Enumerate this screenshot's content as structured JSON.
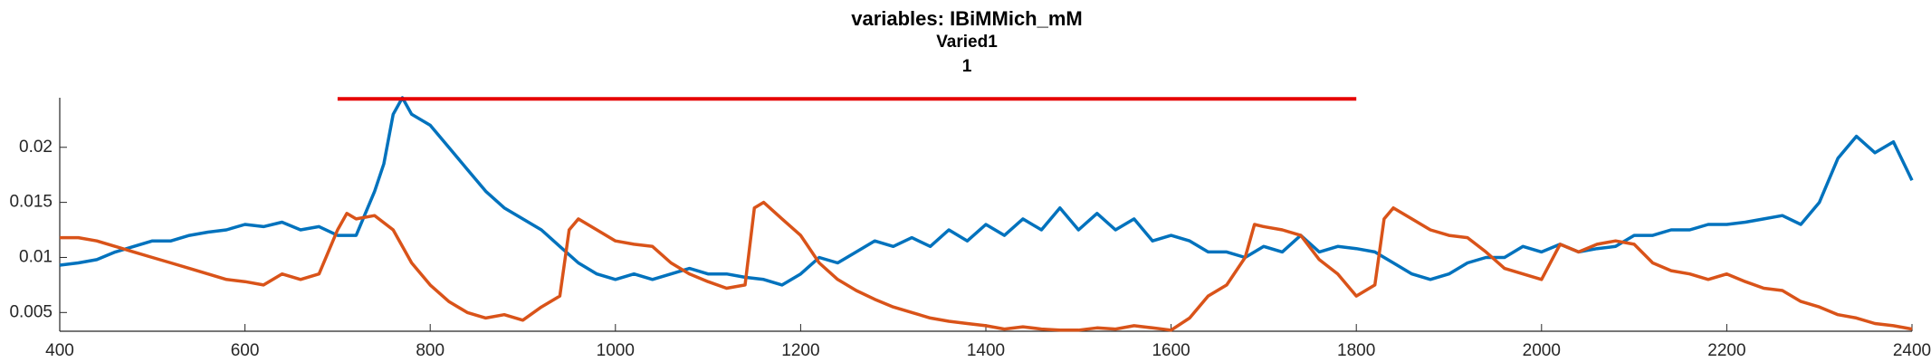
{
  "chart_data": {
    "type": "line",
    "title": "variables: IBiMMich_mM",
    "subtitle": "Varied1",
    "subtitle2": "1",
    "xlim": [
      400,
      2400
    ],
    "xticks": [
      400,
      600,
      800,
      1000,
      1200,
      1400,
      1600,
      1800,
      2000,
      2200,
      2400
    ],
    "ylim": [
      0.0033,
      0.0245
    ],
    "yticks": [
      0.005,
      0.01,
      0.015,
      0.02
    ],
    "grid": false,
    "hline": {
      "x": [
        700,
        1800
      ],
      "y": 0.0244,
      "color": "#e60000"
    },
    "series": [
      {
        "color": "#0072bd",
        "x": [
          400,
          420,
          440,
          460,
          480,
          500,
          520,
          540,
          560,
          580,
          600,
          620,
          640,
          660,
          680,
          700,
          720,
          740,
          750,
          760,
          770,
          780,
          800,
          820,
          840,
          860,
          880,
          900,
          920,
          940,
          960,
          980,
          1000,
          1020,
          1040,
          1060,
          1080,
          1100,
          1120,
          1140,
          1160,
          1180,
          1200,
          1220,
          1240,
          1260,
          1280,
          1300,
          1320,
          1340,
          1360,
          1380,
          1400,
          1420,
          1440,
          1460,
          1480,
          1500,
          1520,
          1540,
          1560,
          1580,
          1600,
          1620,
          1640,
          1660,
          1680,
          1700,
          1720,
          1740,
          1760,
          1780,
          1800,
          1820,
          1840,
          1860,
          1880,
          1900,
          1920,
          1940,
          1960,
          1980,
          2000,
          2020,
          2040,
          2060,
          2080,
          2100,
          2120,
          2140,
          2160,
          2180,
          2200,
          2220,
          2240,
          2260,
          2280,
          2300,
          2320,
          2340,
          2360,
          2380,
          2400
        ],
        "values": [
          0.0093,
          0.0095,
          0.0098,
          0.0105,
          0.011,
          0.0115,
          0.0115,
          0.012,
          0.0123,
          0.0125,
          0.013,
          0.0128,
          0.0132,
          0.0125,
          0.0128,
          0.012,
          0.012,
          0.016,
          0.0185,
          0.023,
          0.0245,
          0.023,
          0.022,
          0.02,
          0.018,
          0.016,
          0.0145,
          0.0135,
          0.0125,
          0.011,
          0.0095,
          0.0085,
          0.008,
          0.0085,
          0.008,
          0.0085,
          0.009,
          0.0085,
          0.0085,
          0.0082,
          0.008,
          0.0075,
          0.0085,
          0.01,
          0.0095,
          0.0105,
          0.0115,
          0.011,
          0.0118,
          0.011,
          0.0125,
          0.0115,
          0.013,
          0.012,
          0.0135,
          0.0125,
          0.0145,
          0.0125,
          0.014,
          0.0125,
          0.0135,
          0.0115,
          0.012,
          0.0115,
          0.0105,
          0.0105,
          0.01,
          0.011,
          0.0105,
          0.012,
          0.0105,
          0.011,
          0.0108,
          0.0105,
          0.0095,
          0.0085,
          0.008,
          0.0085,
          0.0095,
          0.01,
          0.01,
          0.011,
          0.0105,
          0.0112,
          0.0105,
          0.0108,
          0.011,
          0.012,
          0.012,
          0.0125,
          0.0125,
          0.013,
          0.013,
          0.0132,
          0.0135,
          0.0138,
          0.013,
          0.015,
          0.019,
          0.021,
          0.0195,
          0.0205,
          0.017
        ]
      },
      {
        "color": "#d95319",
        "x": [
          400,
          420,
          440,
          460,
          480,
          500,
          520,
          540,
          560,
          580,
          600,
          620,
          640,
          660,
          680,
          700,
          710,
          720,
          740,
          760,
          780,
          800,
          820,
          840,
          860,
          880,
          900,
          920,
          940,
          950,
          960,
          980,
          1000,
          1020,
          1040,
          1060,
          1080,
          1100,
          1120,
          1140,
          1150,
          1160,
          1180,
          1200,
          1220,
          1240,
          1260,
          1280,
          1300,
          1320,
          1340,
          1360,
          1380,
          1400,
          1420,
          1440,
          1460,
          1480,
          1500,
          1520,
          1540,
          1560,
          1580,
          1600,
          1620,
          1640,
          1660,
          1680,
          1690,
          1700,
          1720,
          1740,
          1760,
          1780,
          1800,
          1820,
          1830,
          1840,
          1860,
          1880,
          1900,
          1920,
          1940,
          1960,
          1980,
          2000,
          2020,
          2040,
          2060,
          2080,
          2100,
          2120,
          2140,
          2160,
          2180,
          2200,
          2220,
          2240,
          2260,
          2280,
          2300,
          2320,
          2340,
          2360,
          2380,
          2400
        ],
        "values": [
          0.0118,
          0.0118,
          0.0115,
          0.011,
          0.0105,
          0.01,
          0.0095,
          0.009,
          0.0085,
          0.008,
          0.0078,
          0.0075,
          0.0085,
          0.008,
          0.0085,
          0.0125,
          0.014,
          0.0135,
          0.0138,
          0.0125,
          0.0095,
          0.0075,
          0.006,
          0.005,
          0.0045,
          0.0048,
          0.0043,
          0.0055,
          0.0065,
          0.0125,
          0.0135,
          0.0125,
          0.0115,
          0.0112,
          0.011,
          0.0095,
          0.0085,
          0.0078,
          0.0072,
          0.0075,
          0.0145,
          0.015,
          0.0135,
          0.012,
          0.0095,
          0.008,
          0.007,
          0.0062,
          0.0055,
          0.005,
          0.0045,
          0.0042,
          0.004,
          0.0038,
          0.0035,
          0.0037,
          0.0035,
          0.0034,
          0.0034,
          0.0036,
          0.0035,
          0.0038,
          0.0036,
          0.0034,
          0.0045,
          0.0065,
          0.0075,
          0.01,
          0.013,
          0.0128,
          0.0125,
          0.012,
          0.0098,
          0.0085,
          0.0065,
          0.0075,
          0.0135,
          0.0145,
          0.0135,
          0.0125,
          0.012,
          0.0118,
          0.0105,
          0.009,
          0.0085,
          0.008,
          0.0112,
          0.0105,
          0.0112,
          0.0115,
          0.0112,
          0.0095,
          0.0088,
          0.0085,
          0.008,
          0.0085,
          0.0078,
          0.0072,
          0.007,
          0.006,
          0.0055,
          0.0048,
          0.0045,
          0.004,
          0.0038,
          0.0035
        ]
      }
    ]
  }
}
